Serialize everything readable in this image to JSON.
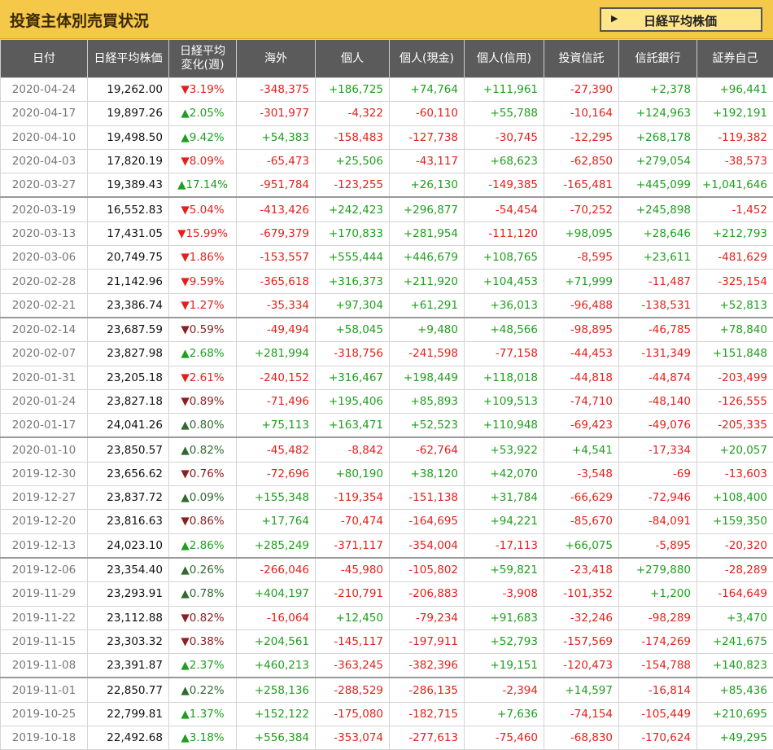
{
  "title": "投資主体別売買状況",
  "button": "日経平均株価",
  "table": {
    "header": [
      "日付",
      "日経平均株価",
      "日経平均\n変化(週)",
      "海外",
      "個人",
      "個人(現金)",
      "個人(信用)",
      "投資信託",
      "信託銀行",
      "証券自己"
    ],
    "rows": [
      [
        "2020-04-24",
        "19,262.00",
        "▼3.19%",
        "-348,375",
        "+186,725",
        "+74,764",
        "+111,961",
        "-27,390",
        "+2,378",
        "+96,441"
      ],
      [
        "2020-04-17",
        "19,897.26",
        "▲2.05%",
        "-301,977",
        "-4,322",
        "-60,110",
        "+55,788",
        "-10,164",
        "+124,963",
        "+192,191"
      ],
      [
        "2020-04-10",
        "19,498.50",
        "▲9.42%",
        "+54,383",
        "-158,483",
        "-127,738",
        "-30,745",
        "-12,295",
        "+268,178",
        "-119,382"
      ],
      [
        "2020-04-03",
        "17,820.19",
        "▼8.09%",
        "-65,473",
        "+25,506",
        "-43,117",
        "+68,623",
        "-62,850",
        "+279,054",
        "-38,573"
      ],
      [
        "2020-03-27",
        "19,389.43",
        "▲17.14%",
        "-951,784",
        "-123,255",
        "+26,130",
        "-149,385",
        "-165,481",
        "+445,099",
        "+1,041,646"
      ],
      [
        "2020-03-19",
        "16,552.83",
        "▼5.04%",
        "-413,426",
        "+242,423",
        "+296,877",
        "-54,454",
        "-70,252",
        "+245,898",
        "-1,452"
      ],
      [
        "2020-03-13",
        "17,431.05",
        "▼15.99%",
        "-679,379",
        "+170,833",
        "+281,954",
        "-111,120",
        "+98,095",
        "+28,646",
        "+212,793"
      ],
      [
        "2020-03-06",
        "20,749.75",
        "▼1.86%",
        "-153,557",
        "+555,444",
        "+446,679",
        "+108,765",
        "-8,595",
        "+23,611",
        "-481,629"
      ],
      [
        "2020-02-28",
        "21,142.96",
        "▼9.59%",
        "-365,618",
        "+316,373",
        "+211,920",
        "+104,453",
        "+71,999",
        "-11,487",
        "-325,154"
      ],
      [
        "2020-02-21",
        "23,386.74",
        "▼1.27%",
        "-35,334",
        "+97,304",
        "+61,291",
        "+36,013",
        "-96,488",
        "-138,531",
        "+52,813"
      ],
      [
        "2020-02-14",
        "23,687.59",
        "▼0.59%",
        "-49,494",
        "+58,045",
        "+9,480",
        "+48,566",
        "-98,895",
        "-46,785",
        "+78,840"
      ],
      [
        "2020-02-07",
        "23,827.98",
        "▲2.68%",
        "+281,994",
        "-318,756",
        "-241,598",
        "-77,158",
        "-44,453",
        "-131,349",
        "+151,848"
      ],
      [
        "2020-01-31",
        "23,205.18",
        "▼2.61%",
        "-240,152",
        "+316,467",
        "+198,449",
        "+118,018",
        "-44,818",
        "-44,874",
        "-203,499"
      ],
      [
        "2020-01-24",
        "23,827.18",
        "▼0.89%",
        "-71,496",
        "+195,406",
        "+85,893",
        "+109,513",
        "-74,710",
        "-48,140",
        "-126,555"
      ],
      [
        "2020-01-17",
        "24,041.26",
        "▲0.80%",
        "+75,113",
        "+163,471",
        "+52,523",
        "+110,948",
        "-69,423",
        "-49,076",
        "-205,335"
      ],
      [
        "2020-01-10",
        "23,850.57",
        "▲0.82%",
        "-45,482",
        "-8,842",
        "-62,764",
        "+53,922",
        "+4,541",
        "-17,334",
        "+20,057"
      ],
      [
        "2019-12-30",
        "23,656.62",
        "▼0.76%",
        "-72,696",
        "+80,190",
        "+38,120",
        "+42,070",
        "-3,548",
        "-69",
        "-13,603"
      ],
      [
        "2019-12-27",
        "23,837.72",
        "▲0.09%",
        "+155,348",
        "-119,354",
        "-151,138",
        "+31,784",
        "-66,629",
        "-72,946",
        "+108,400"
      ],
      [
        "2019-12-20",
        "23,816.63",
        "▼0.86%",
        "+17,764",
        "-70,474",
        "-164,695",
        "+94,221",
        "-85,670",
        "-84,091",
        "+159,350"
      ],
      [
        "2019-12-13",
        "24,023.10",
        "▲2.86%",
        "+285,249",
        "-371,117",
        "-354,004",
        "-17,113",
        "+66,075",
        "-5,895",
        "-20,320"
      ],
      [
        "2019-12-06",
        "23,354.40",
        "▲0.26%",
        "-266,046",
        "-45,980",
        "-105,802",
        "+59,821",
        "-23,418",
        "+279,880",
        "-28,289"
      ],
      [
        "2019-11-29",
        "23,293.91",
        "▲0.78%",
        "+404,197",
        "-210,791",
        "-206,883",
        "-3,908",
        "-101,352",
        "+1,200",
        "-164,649"
      ],
      [
        "2019-11-22",
        "23,112.88",
        "▼0.82%",
        "-16,064",
        "+12,450",
        "-79,234",
        "+91,683",
        "-32,246",
        "-98,289",
        "+3,470"
      ],
      [
        "2019-11-15",
        "23,303.32",
        "▼0.38%",
        "+204,561",
        "-145,117",
        "-197,911",
        "+52,793",
        "-157,569",
        "-174,269",
        "+241,675"
      ],
      [
        "2019-11-08",
        "23,391.87",
        "▲2.37%",
        "+460,213",
        "-363,245",
        "-382,396",
        "+19,151",
        "-120,473",
        "-154,788",
        "+140,823"
      ],
      [
        "2019-11-01",
        "22,850.77",
        "▲0.22%",
        "+258,136",
        "-288,529",
        "-286,135",
        "-2,394",
        "+14,597",
        "-16,814",
        "+85,436"
      ],
      [
        "2019-10-25",
        "22,799.81",
        "▲1.37%",
        "+152,122",
        "-175,080",
        "-182,715",
        "+7,636",
        "-74,154",
        "-105,449",
        "+210,695"
      ],
      [
        "2019-10-18",
        "22,492.68",
        "▲3.18%",
        "+556,384",
        "-353,074",
        "-277,613",
        "-75,460",
        "-68,830",
        "-170,624",
        "+49,295"
      ]
    ]
  }
}
